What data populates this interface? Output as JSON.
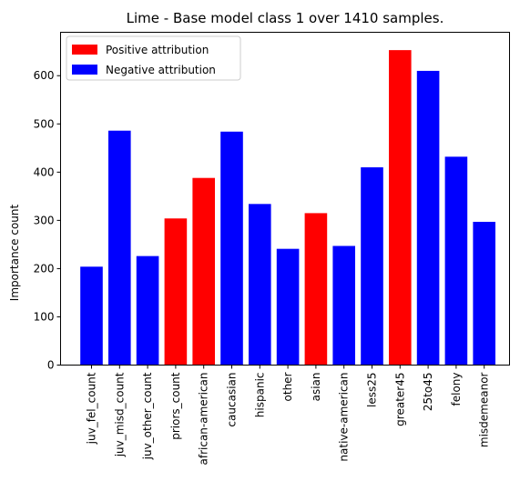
{
  "chart_data": {
    "type": "bar",
    "title": "Lime - Base model class 1 over 1410 samples.",
    "xlabel": "",
    "ylabel": "Importance count",
    "ylim": [
      0,
      690
    ],
    "yticks": [
      0,
      100,
      200,
      300,
      400,
      500,
      600
    ],
    "grid": false,
    "legend_position": "top-left",
    "categories": [
      "juv_fel_count",
      "juv_misd_count",
      "juv_other_count",
      "priors_count",
      "african-american",
      "caucasian",
      "hispanic",
      "other",
      "asian",
      "native-american",
      "less25",
      "greater45",
      "25to45",
      "felony",
      "misdemeanor"
    ],
    "values": [
      204,
      486,
      226,
      304,
      388,
      484,
      334,
      241,
      315,
      247,
      410,
      653,
      610,
      432,
      297
    ],
    "attribution": [
      "negative",
      "negative",
      "negative",
      "positive",
      "positive",
      "negative",
      "negative",
      "negative",
      "positive",
      "negative",
      "negative",
      "positive",
      "negative",
      "negative",
      "negative"
    ],
    "legend": [
      {
        "key": "positive",
        "label": "Positive attribution",
        "color": "#ff0000"
      },
      {
        "key": "negative",
        "label": "Negative attribution",
        "color": "#0000ff"
      }
    ]
  }
}
